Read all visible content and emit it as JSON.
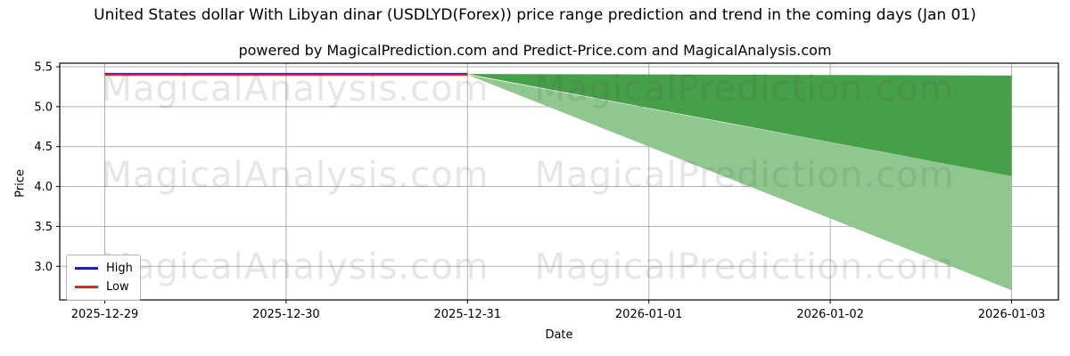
{
  "header": {
    "title": "United States dollar With Libyan dinar (USDLYD(Forex)) price range prediction and trend in the coming days (Jan 01)",
    "subtitle": "powered by MagicalPrediction.com and Predict-Price.com and MagicalAnalysis.com"
  },
  "axes": {
    "xlabel": "Date",
    "ylabel": "Price"
  },
  "watermarks": {
    "rows": [
      {
        "left": "MagicalAnalysis.com",
        "right": "MagicalPrediction.com"
      },
      {
        "left": "MagicalAnalysis.com",
        "right": "MagicalPrediction.com"
      },
      {
        "left": "MagicalAnalysis.com",
        "right": "MagicalPrediction.com"
      }
    ]
  },
  "chart_data": {
    "type": "line",
    "title": "United States dollar With Libyan dinar (USDLYD(Forex)) price range prediction and trend in the coming days (Jan 01)",
    "subtitle": "powered by MagicalPrediction.com and Predict-Price.com and MagicalAnalysis.com",
    "xlabel": "Date",
    "ylabel": "Price",
    "x_labels": [
      "2025-12-29",
      "2025-12-30",
      "2025-12-31",
      "2026-01-01",
      "2026-01-02",
      "2026-01-03"
    ],
    "y_ticks": [
      {
        "value": 5.5,
        "label": "5.5"
      },
      {
        "value": 5.0,
        "label": "5.0"
      },
      {
        "value": 4.5,
        "label": "4.5"
      },
      {
        "value": 4.0,
        "label": "4.0"
      },
      {
        "value": 3.5,
        "label": "3.5"
      },
      {
        "value": 3.0,
        "label": "3.0"
      }
    ],
    "ylim": [
      2.58,
      5.55
    ],
    "grid": true,
    "grid_color": "#b0b0b0",
    "spine_color": "#000000",
    "legend": {
      "position": "lower left",
      "items": [
        {
          "label": "High",
          "color": "#2121ad"
        },
        {
          "label": "Low",
          "color": "#e02424"
        }
      ]
    },
    "series": [
      {
        "name": "High",
        "color": "#2121ad",
        "x_idx": [
          0,
          1,
          2
        ],
        "values": [
          5.41,
          5.41,
          5.41
        ]
      },
      {
        "name": "Low",
        "color": "#e02424",
        "x_idx": [
          0,
          1,
          2
        ],
        "values": [
          5.4,
          5.4,
          5.4
        ]
      }
    ],
    "bands": [
      {
        "name": "outer-prediction-range",
        "color": "#8fc78f",
        "x_idx": [
          2,
          5
        ],
        "upper": [
          5.4,
          4.13
        ],
        "lower": [
          5.4,
          2.7
        ]
      },
      {
        "name": "inner-prediction-range",
        "color": "#46a049",
        "x_idx": [
          2,
          5
        ],
        "upper": [
          5.41,
          5.39
        ],
        "lower": [
          5.41,
          4.13
        ]
      }
    ]
  }
}
